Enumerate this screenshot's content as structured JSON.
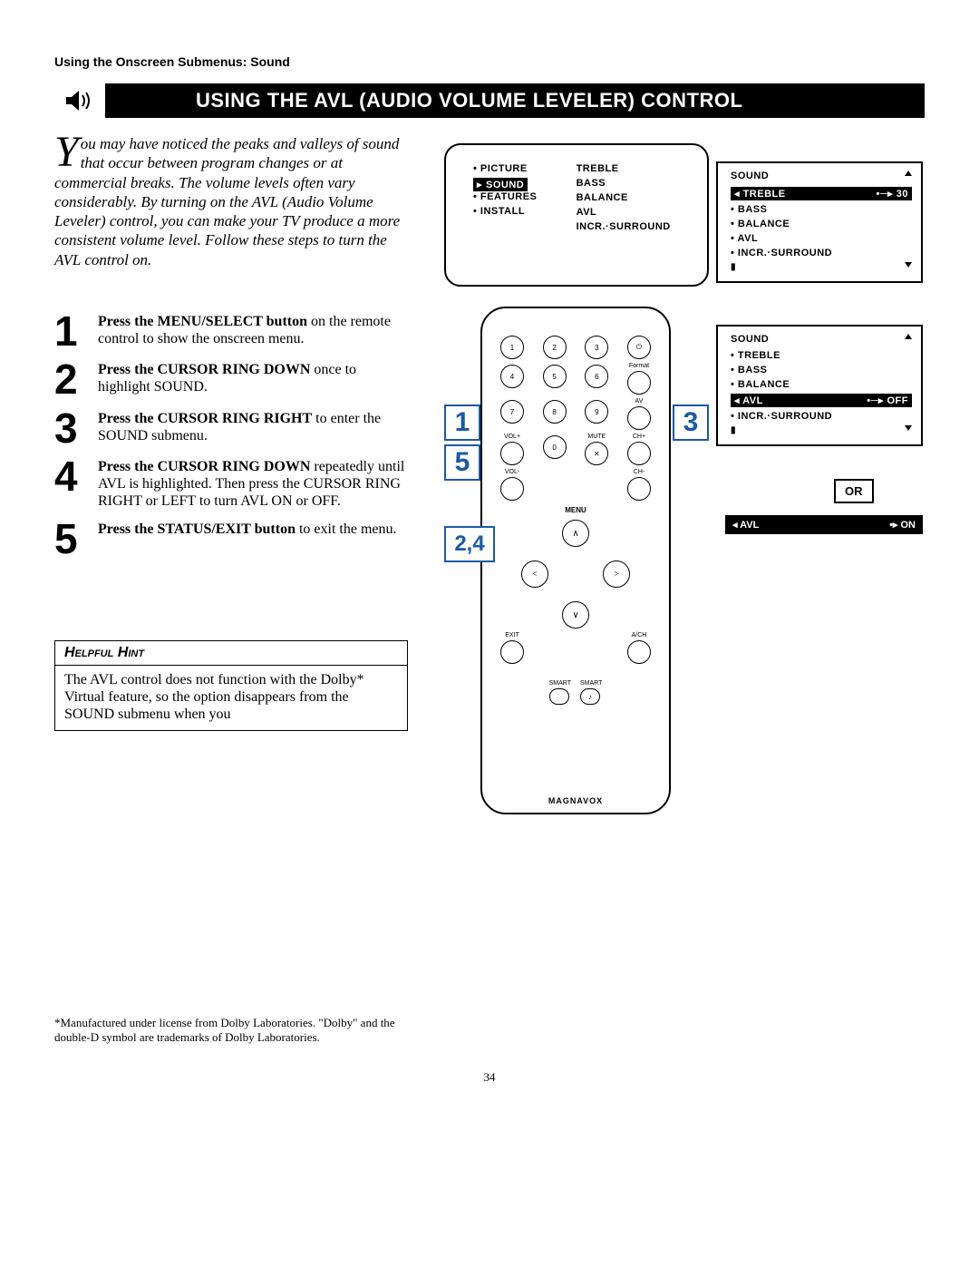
{
  "breadcrumb": "Using the Onscreen Submenus: Sound",
  "title": "USING THE AVL (AUDIO VOLUME LEVELER) CONTROL",
  "intro_first": "Y",
  "intro_rest": "ou may have noticed the peaks and valleys of sound that occur between program changes or at commercial breaks. The volume levels often vary considerably. By turning on the AVL (Audio Volume Leveler) control, you can make your TV produce a more consistent volume level. Follow these steps to turn the AVL control on.",
  "steps": [
    {
      "n": "1",
      "bold": "Press the MENU/SELECT button",
      "rest": " on the remote control to show the onscreen menu."
    },
    {
      "n": "2",
      "bold": "Press the CURSOR RING DOWN",
      "rest": " once to highlight SOUND."
    },
    {
      "n": "3",
      "bold": "Press the CURSOR RING RIGHT",
      "rest": " to enter the SOUND submenu."
    },
    {
      "n": "4",
      "bold": "Press the CURSOR RING DOWN",
      "rest": " repeatedly until AVL is highlighted. Then press the CURSOR RING RIGHT or LEFT to turn AVL ON or OFF."
    },
    {
      "n": "5",
      "bold": "Press the STATUS/EXIT button",
      "rest": " to exit the menu."
    }
  ],
  "hint_title": "Helpful Hint",
  "hint_body": "The AVL control does not function with the Dolby* Virtual feature, so the option disappears from the SOUND submenu when you",
  "osd": {
    "main_left": [
      "PICTURE",
      "SOUND",
      "FEATURES",
      "INSTALL"
    ],
    "main_selected_index": 1,
    "main_right": [
      "TREBLE",
      "BASS",
      "BALANCE",
      "AVL",
      "INCR.·SURROUND"
    ],
    "panel1": {
      "title": "SOUND",
      "items": [
        "TREBLE",
        "BASS",
        "BALANCE",
        "AVL",
        "INCR.·SURROUND"
      ],
      "selected_index": 0,
      "value": "30"
    },
    "panel2": {
      "title": "SOUND",
      "items": [
        "TREBLE",
        "BASS",
        "BALANCE",
        "AVL",
        "INCR.·SURROUND"
      ],
      "selected_index": 3,
      "value": "OFF"
    },
    "or": "OR",
    "avl_on_label": "AVL",
    "avl_on_value": "ON"
  },
  "remote": {
    "brand": "MAGNAVOX",
    "numbers": [
      "1",
      "2",
      "3",
      "4",
      "5",
      "6",
      "7",
      "8",
      "9",
      "0"
    ],
    "labels": {
      "power": "⏻",
      "format": "Format",
      "av": "AV",
      "volp": "VOL+",
      "mute": "MUTE",
      "chp": "CH+",
      "voln": "VOL-",
      "chn": "CH-",
      "menu": "MENU",
      "up": "∧",
      "down": "∨",
      "left": "<",
      "right": ">",
      "exit": "EXIT",
      "ach": "A/CH",
      "smart1": "SMART",
      "smart2": "SMART"
    }
  },
  "callouts": {
    "c1": "1",
    "c3": "3",
    "c5": "5",
    "c24": "2,4"
  },
  "footnote": "*Manufactured under license from Dolby Laboratories. \"Dolby\" and the double-D symbol are trademarks of Dolby Laboratories.",
  "page_number": "34",
  "colors": {
    "accent": "#1a5aa8"
  }
}
